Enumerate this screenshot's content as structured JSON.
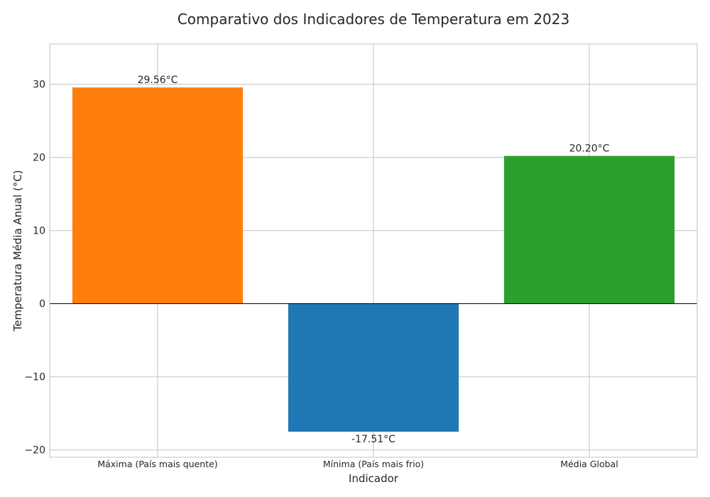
{
  "chart_data": {
    "type": "bar",
    "title": "Comparativo dos Indicadores de Temperatura em 2023",
    "xlabel": "Indicador",
    "ylabel": "Temperatura Média Anual (°C)",
    "categories": [
      "Máxima (País mais quente)",
      "Mínima (País mais frio)",
      "Média Global"
    ],
    "values": [
      29.56,
      -17.51,
      20.2
    ],
    "data_labels": [
      "29.56°C",
      "-17.51°C",
      "20.20°C"
    ],
    "colors": [
      "#ff7f0e",
      "#1f77b4",
      "#2ca02c"
    ],
    "ylim": [
      -21,
      35.5
    ],
    "yticks": [
      -20,
      -10,
      0,
      10,
      20,
      30
    ],
    "ytick_labels": [
      "−20",
      "−10",
      "0",
      "10",
      "20",
      "30"
    ],
    "grid": true,
    "zero_line": true
  }
}
